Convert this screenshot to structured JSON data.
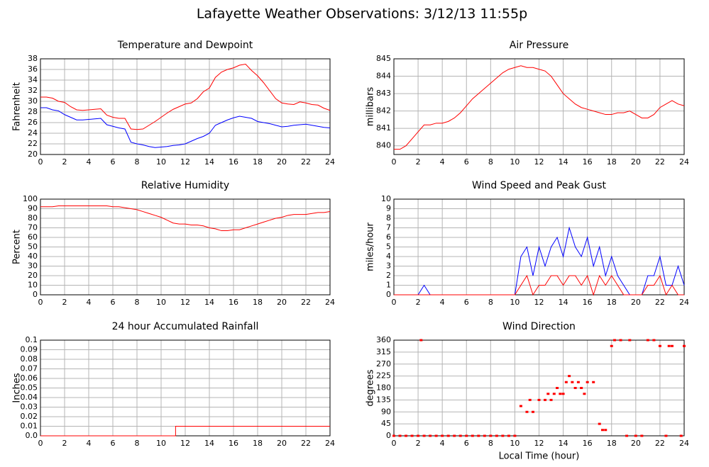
{
  "title": "Lafayette Weather Observations: 3/12/13 11:55p",
  "chart_data": [
    {
      "type": "line",
      "title": "Temperature and Dewpoint",
      "ylabel": "Fahrenheit",
      "xlim": [
        0,
        24
      ],
      "xticks": [
        0,
        2,
        4,
        6,
        8,
        10,
        12,
        14,
        16,
        18,
        20,
        22,
        24
      ],
      "ylim": [
        20,
        38
      ],
      "yticks": [
        20,
        22,
        24,
        26,
        28,
        30,
        32,
        34,
        36,
        38
      ],
      "grid": true,
      "x": [
        0,
        0.5,
        1,
        1.5,
        2,
        2.5,
        3,
        3.5,
        4,
        4.5,
        5,
        5.5,
        6,
        6.5,
        7,
        7.5,
        8,
        8.5,
        9,
        9.5,
        10,
        10.5,
        11,
        11.5,
        12,
        12.5,
        13,
        13.5,
        14,
        14.5,
        15,
        15.5,
        16,
        16.5,
        17,
        17.5,
        18,
        18.5,
        19,
        19.5,
        20,
        20.5,
        21,
        21.5,
        22,
        22.5,
        23,
        23.5,
        24
      ],
      "series": [
        {
          "color": "#ff0000",
          "values": [
            30.8,
            30.8,
            30.6,
            30.0,
            29.8,
            29.0,
            28.4,
            28.3,
            28.4,
            28.5,
            28.6,
            27.4,
            27.0,
            26.8,
            26.8,
            24.8,
            24.7,
            24.8,
            25.5,
            26.2,
            27.0,
            27.8,
            28.5,
            29.0,
            29.5,
            29.7,
            30.5,
            31.8,
            32.5,
            34.5,
            35.5,
            36.0,
            36.3,
            36.8,
            37.0,
            35.8,
            34.8,
            33.5,
            32.0,
            30.5,
            29.7,
            29.5,
            29.4,
            29.9,
            29.7,
            29.4,
            29.3,
            28.7,
            28.3
          ]
        },
        {
          "color": "#0000ff",
          "values": [
            28.8,
            28.8,
            28.4,
            28.2,
            27.5,
            27.0,
            26.5,
            26.5,
            26.6,
            26.7,
            26.8,
            25.6,
            25.3,
            25.0,
            24.8,
            22.3,
            22.0,
            21.8,
            21.5,
            21.3,
            21.4,
            21.5,
            21.7,
            21.8,
            22.0,
            22.5,
            23.0,
            23.4,
            24.0,
            25.5,
            26.0,
            26.5,
            26.9,
            27.2,
            27.0,
            26.8,
            26.2,
            26.0,
            25.8,
            25.5,
            25.2,
            25.3,
            25.5,
            25.6,
            25.7,
            25.5,
            25.3,
            25.1,
            25.0
          ]
        }
      ]
    },
    {
      "type": "line",
      "title": "Air Pressure",
      "ylabel": "millibars",
      "xlim": [
        0,
        24
      ],
      "xticks": [
        0,
        2,
        4,
        6,
        8,
        10,
        12,
        14,
        16,
        18,
        20,
        22,
        24
      ],
      "ylim": [
        839.5,
        845
      ],
      "yticks": [
        840,
        841,
        842,
        843,
        844,
        845
      ],
      "grid": true,
      "x": [
        0,
        0.5,
        1,
        1.5,
        2,
        2.5,
        3,
        3.5,
        4,
        4.5,
        5,
        5.5,
        6,
        6.5,
        7,
        7.5,
        8,
        8.5,
        9,
        9.5,
        10,
        10.5,
        11,
        11.5,
        12,
        12.5,
        13,
        13.5,
        14,
        14.5,
        15,
        15.5,
        16,
        16.5,
        17,
        17.5,
        18,
        18.5,
        19,
        19.5,
        20,
        20.5,
        21,
        21.5,
        22,
        22.5,
        23,
        23.5,
        24
      ],
      "series": [
        {
          "color": "#ff0000",
          "values": [
            839.8,
            839.8,
            840.0,
            840.4,
            840.8,
            841.2,
            841.2,
            841.3,
            841.3,
            841.4,
            841.6,
            841.9,
            842.3,
            842.7,
            843.0,
            843.3,
            843.6,
            843.9,
            844.2,
            844.4,
            844.5,
            844.6,
            844.5,
            844.5,
            844.4,
            844.3,
            844.0,
            843.5,
            843.0,
            842.7,
            842.4,
            842.2,
            842.1,
            842.0,
            841.9,
            841.8,
            841.8,
            841.9,
            841.9,
            842.0,
            841.8,
            841.6,
            841.6,
            841.8,
            842.2,
            842.4,
            842.6,
            842.4,
            842.3
          ]
        }
      ]
    },
    {
      "type": "line",
      "title": "Relative Humidity",
      "ylabel": "Percent",
      "xlim": [
        0,
        24
      ],
      "xticks": [
        0,
        2,
        4,
        6,
        8,
        10,
        12,
        14,
        16,
        18,
        20,
        22,
        24
      ],
      "ylim": [
        0,
        100
      ],
      "yticks": [
        0,
        10,
        20,
        30,
        40,
        50,
        60,
        70,
        80,
        90,
        100
      ],
      "grid": true,
      "x": [
        0,
        0.5,
        1,
        1.5,
        2,
        2.5,
        3,
        3.5,
        4,
        4.5,
        5,
        5.5,
        6,
        6.5,
        7,
        7.5,
        8,
        8.5,
        9,
        9.5,
        10,
        10.5,
        11,
        11.5,
        12,
        12.5,
        13,
        13.5,
        14,
        14.5,
        15,
        15.5,
        16,
        16.5,
        17,
        17.5,
        18,
        18.5,
        19,
        19.5,
        20,
        20.5,
        21,
        21.5,
        22,
        22.5,
        23,
        23.5,
        24
      ],
      "series": [
        {
          "color": "#ff0000",
          "values": [
            92,
            92,
            92,
            93,
            93,
            93,
            93,
            93,
            93,
            93,
            93,
            93,
            92,
            92,
            91,
            90,
            89,
            87,
            85,
            83,
            81,
            78,
            75,
            74,
            74,
            73,
            73,
            72,
            70,
            69,
            67,
            67,
            68,
            68,
            70,
            72,
            74,
            76,
            78,
            80,
            81,
            83,
            84,
            84,
            84,
            85,
            86,
            86,
            87
          ]
        }
      ]
    },
    {
      "type": "line",
      "title": "Wind Speed and Peak Gust",
      "ylabel": "miles/hour",
      "xlim": [
        0,
        24
      ],
      "xticks": [
        0,
        2,
        4,
        6,
        8,
        10,
        12,
        14,
        16,
        18,
        20,
        22,
        24
      ],
      "ylim": [
        0,
        10
      ],
      "yticks": [
        0,
        1,
        2,
        3,
        4,
        5,
        6,
        7,
        8,
        9,
        10
      ],
      "grid": true,
      "x": [
        0,
        0.5,
        1,
        1.5,
        2,
        2.5,
        3,
        3.5,
        4,
        4.5,
        5,
        5.5,
        6,
        6.5,
        7,
        7.5,
        8,
        8.5,
        9,
        9.5,
        10,
        10.5,
        11,
        11.5,
        12,
        12.5,
        13,
        13.5,
        14,
        14.5,
        15,
        15.5,
        16,
        16.5,
        17,
        17.5,
        18,
        18.5,
        19,
        19.5,
        20,
        20.5,
        21,
        21.5,
        22,
        22.5,
        23,
        23.5,
        24
      ],
      "series": [
        {
          "color": "#0000ff",
          "values": [
            0,
            0,
            0,
            0,
            0,
            1,
            0,
            0,
            0,
            0,
            0,
            0,
            0,
            0,
            0,
            0,
            0,
            0,
            0,
            0,
            0,
            4,
            5,
            2,
            5,
            3,
            5,
            6,
            4,
            7,
            5,
            4,
            6,
            3,
            5,
            2,
            4,
            2,
            1,
            0,
            0,
            0,
            2,
            2,
            4,
            1,
            1,
            3,
            1
          ]
        },
        {
          "color": "#ff0000",
          "values": [
            0,
            0,
            0,
            0,
            0,
            0,
            0,
            0,
            0,
            0,
            0,
            0,
            0,
            0,
            0,
            0,
            0,
            0,
            0,
            0,
            0,
            1,
            2,
            0,
            1,
            1,
            2,
            2,
            1,
            2,
            2,
            1,
            2,
            0,
            2,
            1,
            2,
            1,
            0,
            0,
            0,
            0,
            1,
            1,
            2,
            0,
            1,
            0,
            0
          ]
        }
      ]
    },
    {
      "type": "line",
      "title": "24 hour Accumulated Rainfall",
      "ylabel": "Inches",
      "xlim": [
        0,
        24
      ],
      "xticks": [
        0,
        2,
        4,
        6,
        8,
        10,
        12,
        14,
        16,
        18,
        20,
        22,
        24
      ],
      "ylim": [
        0,
        0.1
      ],
      "yticks": [
        {
          "value": 0,
          "label": "0.0"
        },
        0.01,
        0.02,
        0.03,
        0.04,
        0.05,
        0.06,
        0.07,
        0.08,
        0.09,
        0.1
      ],
      "grid": true,
      "x": [
        0,
        11.2,
        11.2,
        24
      ],
      "series": [
        {
          "color": "#ff0000",
          "values": [
            0,
            0,
            0.01,
            0.01
          ]
        }
      ]
    },
    {
      "type": "scatter",
      "title": "Wind Direction",
      "ylabel": "degrees",
      "xlabel": "Local Time (hour)",
      "xlim": [
        0,
        24
      ],
      "xticks": [
        0,
        2,
        4,
        6,
        8,
        10,
        12,
        14,
        16,
        18,
        20,
        22,
        24
      ],
      "ylim": [
        0,
        360
      ],
      "yticks": [
        0,
        45,
        90,
        135,
        180,
        225,
        270,
        315,
        360
      ],
      "grid": true,
      "x": [
        0,
        0.5,
        1,
        1.5,
        2,
        2.25,
        2.5,
        3,
        3.5,
        4,
        4.5,
        5,
        5.5,
        6,
        6.5,
        7,
        7.5,
        8,
        8.5,
        9,
        9.5,
        10,
        10.5,
        11,
        11.25,
        11.5,
        12,
        12.5,
        12.75,
        13,
        13.25,
        13.5,
        13.75,
        14,
        14.25,
        14.5,
        14.75,
        15,
        15.25,
        15.5,
        15.75,
        16,
        16.5,
        17,
        17.25,
        17.5,
        18,
        18.25,
        18.75,
        19.25,
        19.5,
        20,
        20.5,
        21,
        21.5,
        22,
        22.5,
        22.75,
        23,
        23.75,
        24
      ],
      "series": [
        {
          "color": "#ff0000",
          "values": [
            0,
            0,
            0,
            0,
            0,
            360,
            0,
            0,
            0,
            0,
            0,
            0,
            0,
            0,
            0,
            0,
            0,
            0,
            0,
            0,
            0,
            0,
            112,
            90,
            135,
            90,
            135,
            135,
            158,
            135,
            158,
            180,
            158,
            158,
            202,
            225,
            202,
            180,
            202,
            180,
            158,
            202,
            202,
            45,
            22,
            22,
            338,
            360,
            360,
            0,
            360,
            0,
            0,
            360,
            360,
            338,
            0,
            338,
            338,
            0,
            338
          ]
        }
      ]
    }
  ]
}
